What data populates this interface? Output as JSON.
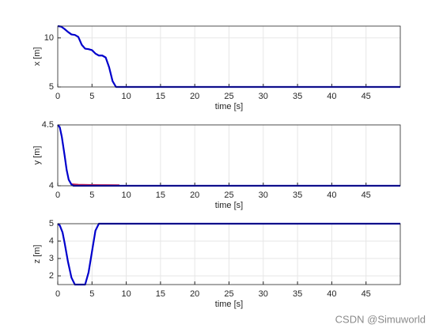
{
  "chart_data": [
    {
      "type": "line",
      "xlabel": "time [s]",
      "ylabel": "x [m]",
      "xlim": [
        0,
        50
      ],
      "xticks": [
        0,
        5,
        10,
        15,
        20,
        25,
        30,
        35,
        40,
        45
      ],
      "ylim": [
        5,
        11.2
      ],
      "yticks": [
        5,
        10
      ],
      "grid": true,
      "series": [
        {
          "color": "#0000cc",
          "x": [
            0,
            0.5,
            1,
            1.5,
            2,
            2.5,
            3,
            3.5,
            4,
            4.5,
            5,
            5.5,
            6,
            6.5,
            7,
            7.5,
            8,
            8.5,
            9,
            50
          ],
          "values": [
            11.2,
            11.15,
            10.9,
            10.6,
            10.35,
            10.3,
            10.1,
            9.3,
            8.9,
            8.85,
            8.75,
            8.4,
            8.2,
            8.2,
            8.0,
            7.0,
            5.6,
            5.0,
            5.0,
            5.0
          ]
        }
      ]
    },
    {
      "type": "line",
      "xlabel": "time [s]",
      "ylabel": "y [m]",
      "xlim": [
        0,
        50
      ],
      "xticks": [
        0,
        5,
        10,
        15,
        20,
        25,
        30,
        35,
        40,
        45
      ],
      "ylim": [
        4,
        4.5
      ],
      "yticks": [
        4,
        4.5
      ],
      "grid": true,
      "series": [
        {
          "color": "#cc1f4a",
          "x": [
            2,
            3,
            5,
            7,
            9
          ],
          "values": [
            4.012,
            4.008,
            4.006,
            4.005,
            4.004
          ]
        },
        {
          "color": "#0000cc",
          "x": [
            0,
            0.3,
            0.6,
            1,
            1.3,
            1.6,
            2,
            2.3,
            50
          ],
          "values": [
            4.5,
            4.48,
            4.4,
            4.25,
            4.13,
            4.05,
            4.01,
            4,
            4
          ]
        }
      ]
    },
    {
      "type": "line",
      "xlabel": "time [s]",
      "ylabel": "z [m]",
      "xlim": [
        0,
        50
      ],
      "xticks": [
        0,
        5,
        10,
        15,
        20,
        25,
        30,
        35,
        40,
        45
      ],
      "ylim": [
        1.5,
        5
      ],
      "yticks": [
        2,
        3,
        4,
        5
      ],
      "grid": true,
      "series": [
        {
          "color": "#0000cc",
          "x": [
            0,
            0.3,
            0.7,
            1,
            1.5,
            2,
            2.5,
            3,
            3.5,
            4,
            4.5,
            5,
            5.5,
            6,
            50
          ],
          "values": [
            5,
            4.9,
            4.5,
            3.9,
            2.8,
            1.9,
            1.5,
            1.5,
            1.5,
            1.5,
            2.2,
            3.4,
            4.6,
            5,
            5
          ]
        }
      ]
    }
  ],
  "watermark": "CSDN @Simuworld"
}
